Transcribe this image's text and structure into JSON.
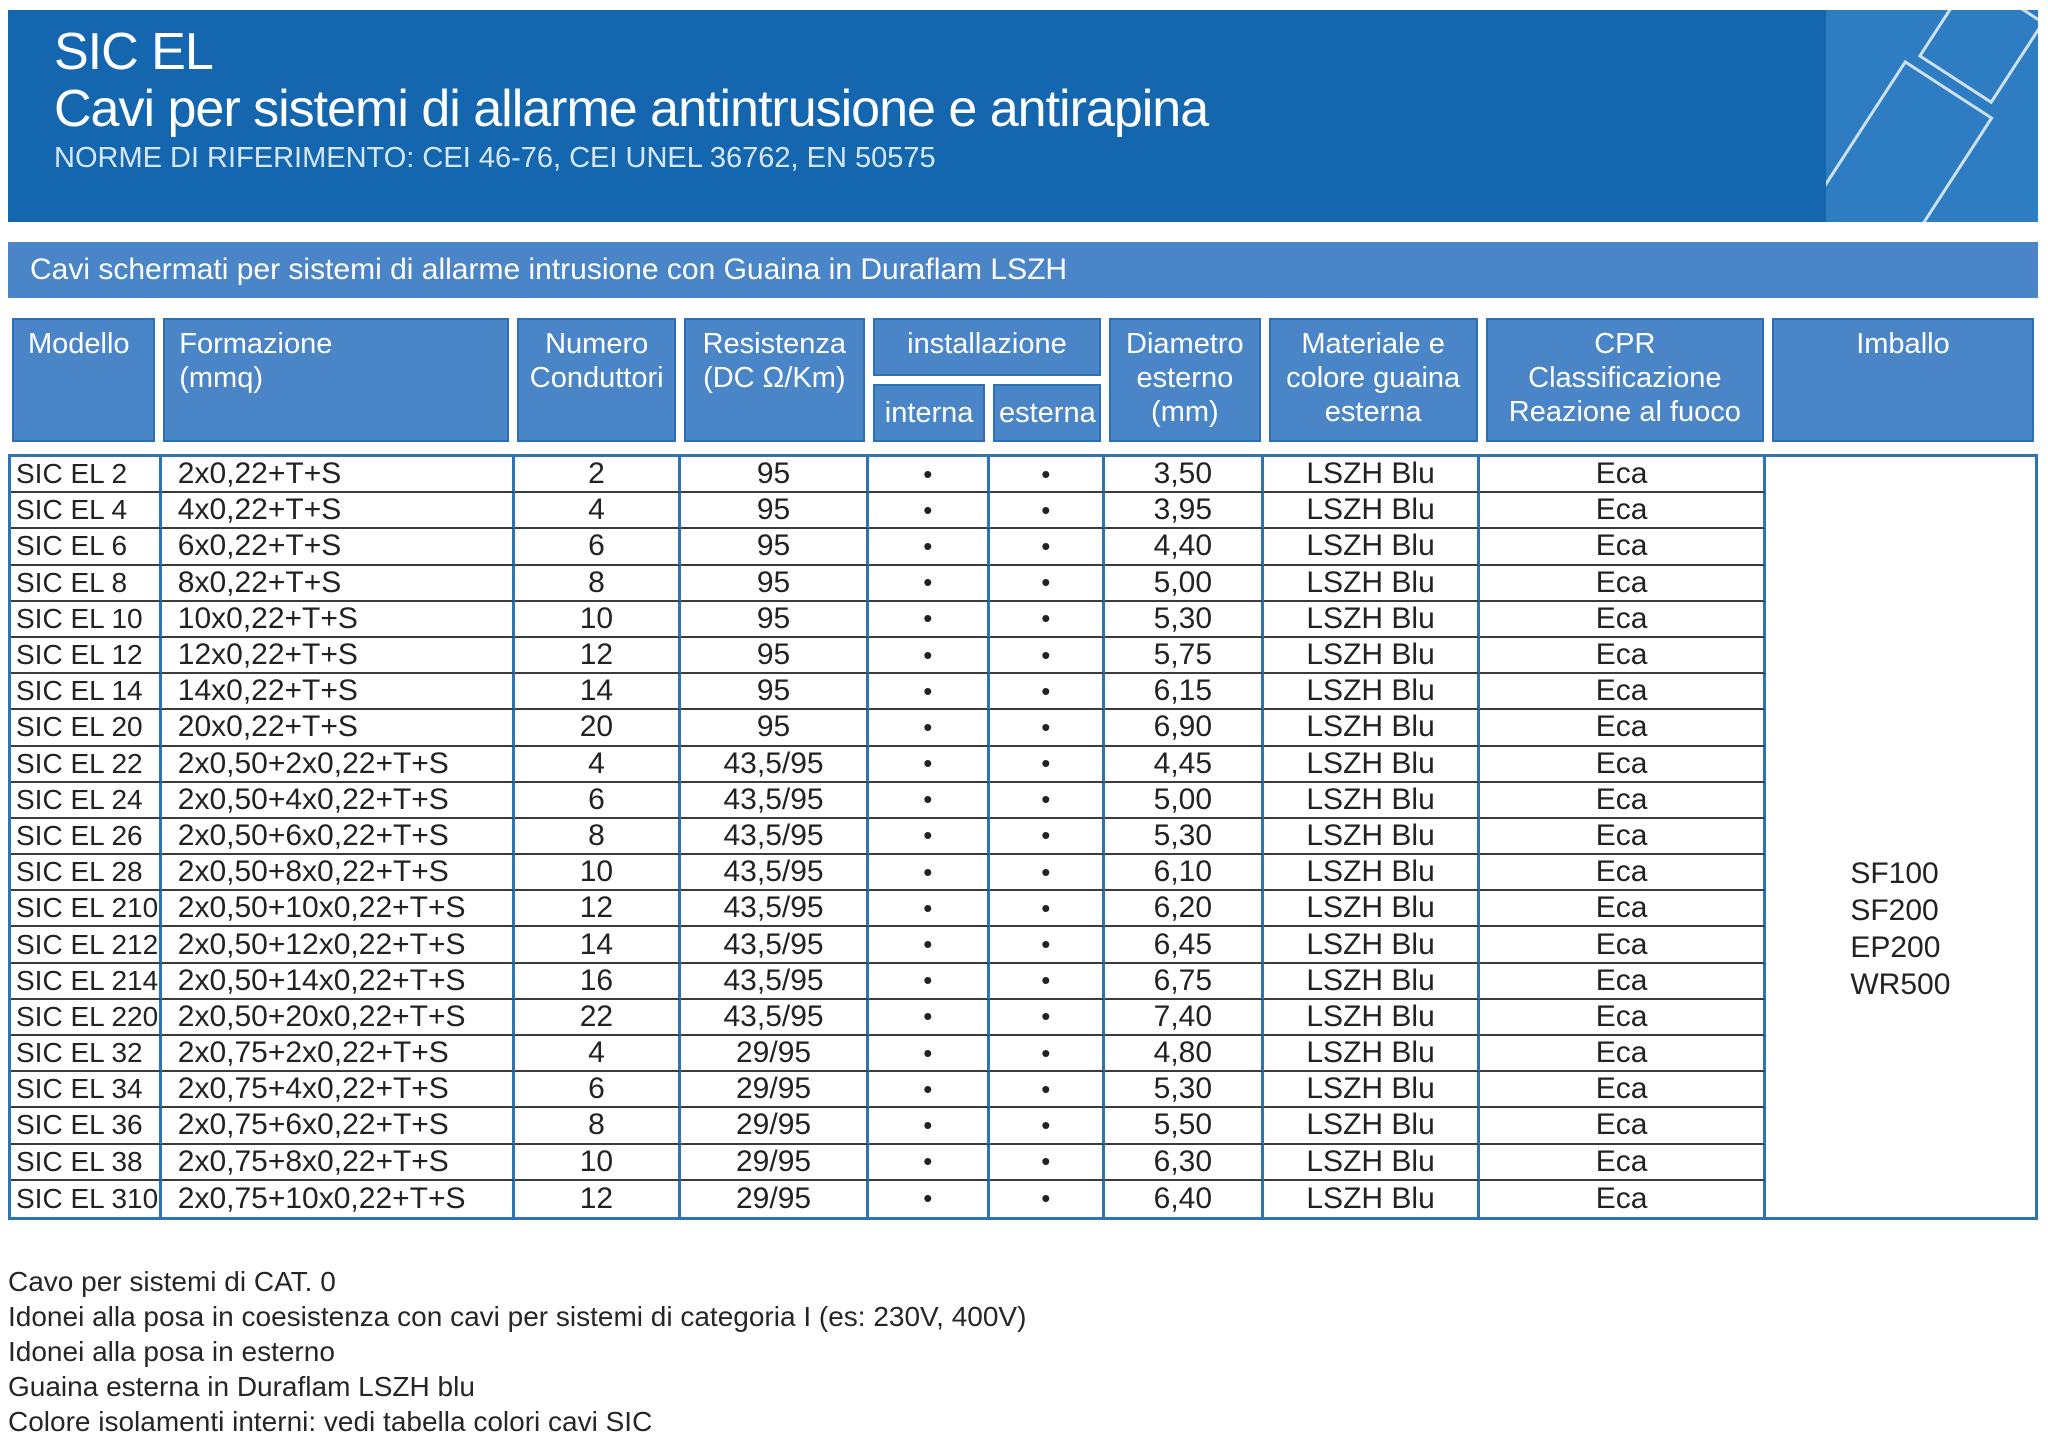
{
  "header": {
    "title": "SIC EL",
    "subtitle": "Cavi per sistemi di allarme antintrusione e antirapina",
    "norms": "NORME DI RIFERIMENTO: CEI 46-76, CEI UNEL 36762, EN 50575"
  },
  "band": {
    "text": "Cavi schermati per sistemi di allarme intrusione con Guaina in Duraflam LSZH"
  },
  "table": {
    "columns": {
      "modello": "Modello",
      "formazione": "Formazione\n(mmq)",
      "conduttori": "Numero\nConduttori",
      "resistenza": "Resistenza\n(DC Ω/Km)",
      "installazione": "installazione",
      "interna": "interna",
      "esterna": "esterna",
      "diametro": "Diametro\nesterno\n(mm)",
      "guaina": "Materiale e\ncolore guaina\nesterna",
      "cpr": "CPR\nClassificazione\nReazione al fuoco",
      "imballo": "Imballo"
    },
    "rows": [
      {
        "modello": "SIC EL 2",
        "formazione": "2x0,22+T+S",
        "conduttori": "2",
        "resistenza": "95",
        "interna": "•",
        "esterna": "•",
        "diametro": "3,50",
        "guaina": "LSZH Blu",
        "cpr": "Eca"
      },
      {
        "modello": "SIC EL 4",
        "formazione": "4x0,22+T+S",
        "conduttori": "4",
        "resistenza": "95",
        "interna": "•",
        "esterna": "•",
        "diametro": "3,95",
        "guaina": "LSZH Blu",
        "cpr": "Eca"
      },
      {
        "modello": "SIC EL 6",
        "formazione": "6x0,22+T+S",
        "conduttori": "6",
        "resistenza": "95",
        "interna": "•",
        "esterna": "•",
        "diametro": "4,40",
        "guaina": "LSZH Blu",
        "cpr": "Eca"
      },
      {
        "modello": "SIC EL 8",
        "formazione": "8x0,22+T+S",
        "conduttori": "8",
        "resistenza": "95",
        "interna": "•",
        "esterna": "•",
        "diametro": "5,00",
        "guaina": "LSZH Blu",
        "cpr": "Eca"
      },
      {
        "modello": "SIC EL 10",
        "formazione": "10x0,22+T+S",
        "conduttori": "10",
        "resistenza": "95",
        "interna": "•",
        "esterna": "•",
        "diametro": "5,30",
        "guaina": "LSZH Blu",
        "cpr": "Eca"
      },
      {
        "modello": "SIC EL 12",
        "formazione": "12x0,22+T+S",
        "conduttori": "12",
        "resistenza": "95",
        "interna": "•",
        "esterna": "•",
        "diametro": "5,75",
        "guaina": "LSZH Blu",
        "cpr": "Eca"
      },
      {
        "modello": "SIC EL 14",
        "formazione": "14x0,22+T+S",
        "conduttori": "14",
        "resistenza": "95",
        "interna": "•",
        "esterna": "•",
        "diametro": "6,15",
        "guaina": "LSZH Blu",
        "cpr": "Eca"
      },
      {
        "modello": "SIC EL 20",
        "formazione": "20x0,22+T+S",
        "conduttori": "20",
        "resistenza": "95",
        "interna": "•",
        "esterna": "•",
        "diametro": "6,90",
        "guaina": "LSZH Blu",
        "cpr": "Eca"
      },
      {
        "modello": "SIC EL 22",
        "formazione": "2x0,50+2x0,22+T+S",
        "conduttori": "4",
        "resistenza": "43,5/95",
        "interna": "•",
        "esterna": "•",
        "diametro": "4,45",
        "guaina": "LSZH Blu",
        "cpr": "Eca"
      },
      {
        "modello": "SIC EL 24",
        "formazione": "2x0,50+4x0,22+T+S",
        "conduttori": "6",
        "resistenza": "43,5/95",
        "interna": "•",
        "esterna": "•",
        "diametro": "5,00",
        "guaina": "LSZH Blu",
        "cpr": "Eca"
      },
      {
        "modello": "SIC EL 26",
        "formazione": "2x0,50+6x0,22+T+S",
        "conduttori": "8",
        "resistenza": "43,5/95",
        "interna": "•",
        "esterna": "•",
        "diametro": "5,30",
        "guaina": "LSZH Blu",
        "cpr": "Eca"
      },
      {
        "modello": "SIC EL 28",
        "formazione": "2x0,50+8x0,22+T+S",
        "conduttori": "10",
        "resistenza": "43,5/95",
        "interna": "•",
        "esterna": "•",
        "diametro": "6,10",
        "guaina": "LSZH Blu",
        "cpr": "Eca"
      },
      {
        "modello": "SIC EL 210",
        "formazione": "2x0,50+10x0,22+T+S",
        "conduttori": "12",
        "resistenza": "43,5/95",
        "interna": "•",
        "esterna": "•",
        "diametro": "6,20",
        "guaina": "LSZH Blu",
        "cpr": "Eca"
      },
      {
        "modello": "SIC EL 212",
        "formazione": "2x0,50+12x0,22+T+S",
        "conduttori": "14",
        "resistenza": "43,5/95",
        "interna": "•",
        "esterna": "•",
        "diametro": "6,45",
        "guaina": "LSZH Blu",
        "cpr": "Eca"
      },
      {
        "modello": "SIC EL 214",
        "formazione": "2x0,50+14x0,22+T+S",
        "conduttori": "16",
        "resistenza": "43,5/95",
        "interna": "•",
        "esterna": "•",
        "diametro": "6,75",
        "guaina": "LSZH Blu",
        "cpr": "Eca"
      },
      {
        "modello": "SIC EL 220",
        "formazione": "2x0,50+20x0,22+T+S",
        "conduttori": "22",
        "resistenza": "43,5/95",
        "interna": "•",
        "esterna": "•",
        "diametro": "7,40",
        "guaina": "LSZH Blu",
        "cpr": "Eca"
      },
      {
        "modello": "SIC EL 32",
        "formazione": "2x0,75+2x0,22+T+S",
        "conduttori": "4",
        "resistenza": "29/95",
        "interna": "•",
        "esterna": "•",
        "diametro": "4,80",
        "guaina": "LSZH Blu",
        "cpr": "Eca"
      },
      {
        "modello": "SIC EL 34",
        "formazione": "2x0,75+4x0,22+T+S",
        "conduttori": "6",
        "resistenza": "29/95",
        "interna": "•",
        "esterna": "•",
        "diametro": "5,30",
        "guaina": "LSZH Blu",
        "cpr": "Eca"
      },
      {
        "modello": "SIC EL 36",
        "formazione": "2x0,75+6x0,22+T+S",
        "conduttori": "8",
        "resistenza": "29/95",
        "interna": "•",
        "esterna": "•",
        "diametro": "5,50",
        "guaina": "LSZH Blu",
        "cpr": "Eca"
      },
      {
        "modello": "SIC EL 38",
        "formazione": "2x0,75+8x0,22+T+S",
        "conduttori": "10",
        "resistenza": "29/95",
        "interna": "•",
        "esterna": "•",
        "diametro": "6,30",
        "guaina": "LSZH Blu",
        "cpr": "Eca"
      },
      {
        "modello": "SIC EL 310",
        "formazione": "2x0,75+10x0,22+T+S",
        "conduttori": "12",
        "resistenza": "29/95",
        "interna": "•",
        "esterna": "•",
        "diametro": "6,40",
        "guaina": "LSZH Blu",
        "cpr": "Eca"
      }
    ],
    "imballo": [
      "SF100",
      "SF200",
      "EP200",
      "WR500"
    ]
  },
  "notes": [
    "Cavo per sistemi di CAT. 0",
    "Idonei alla posa in coesistenza con cavi per sistemi di categoria I (es: 230V, 400V)",
    "Idonei alla posa in esterno",
    "Guaina esterna in Duraflam LSZH blu",
    "Colore isolamenti interni: vedi tabella colori cavi SIC"
  ],
  "colors": {
    "c-banner": "#1467ae",
    "c-panel": "#2e7cc2",
    "c-band": "#4a85c7",
    "c-headcell": "#4a85c7",
    "c-headline": "#2b6fb4",
    "c-grid": "#2e74b5",
    "c-rowline": "#3c3c3c",
    "c-norms": "#d6e8f8",
    "c-text": "#222222"
  }
}
